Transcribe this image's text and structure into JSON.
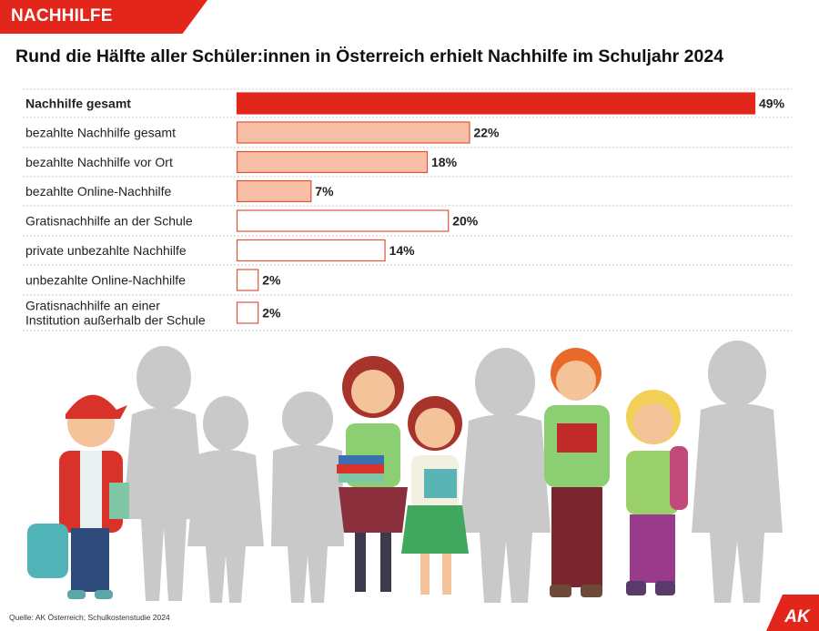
{
  "header": {
    "tag": "NACHHILFE",
    "title": "Rund die Hälfte aller Schüler:innen in Österreich erhielt Nachhilfe im Schuljahr 2024"
  },
  "colors": {
    "accent": "#e3261b",
    "bar_light": "#f7bfa6",
    "bar_border": "#e0533b",
    "silhouette": "#c9c9c9"
  },
  "chart_data": {
    "type": "bar",
    "orientation": "horizontal",
    "title": "Rund die Hälfte aller Schüler:innen in Österreich erhielt Nachhilfe im Schuljahr 2024",
    "unit": "%",
    "categories": [
      "Nachhilfe gesamt",
      "bezahlte Nachhilfe gesamt",
      "bezahlte Nachhilfe vor Ort",
      "bezahlte Online-Nachhilfe",
      "Gratisnachhilfe an der Schule",
      "private unbezahlte Nachhilfe",
      "unbezahlte Online-Nachhilfe",
      "Gratisnachhilfe an einer Institution außerhalb der Schule"
    ],
    "label_lines": [
      [
        "Nachhilfe gesamt"
      ],
      [
        "bezahlte Nachhilfe gesamt"
      ],
      [
        "bezahlte Nachhilfe vor Ort"
      ],
      [
        "bezahlte Online-Nachhilfe"
      ],
      [
        "Gratisnachhilfe an der Schule"
      ],
      [
        "private unbezahlte Nachhilfe"
      ],
      [
        "unbezahlte Online-Nachhilfe"
      ],
      [
        "Gratisnachhilfe an einer",
        "Institution außerhalb der Schule"
      ]
    ],
    "values": [
      49,
      22,
      18,
      7,
      20,
      14,
      2,
      2
    ],
    "value_labels": [
      "49%",
      "22%",
      "18%",
      "7%",
      "20%",
      "14%",
      "2%",
      "2%"
    ],
    "fill_style": [
      "solid",
      "light",
      "light",
      "light",
      "outline",
      "outline",
      "outline",
      "outline"
    ],
    "xlim": [
      0,
      49
    ],
    "grid": false,
    "legend": "none"
  },
  "footer": {
    "source": "Quelle: AK Österreich; Schulkostenstudie 2024",
    "logo_text": "AK"
  }
}
